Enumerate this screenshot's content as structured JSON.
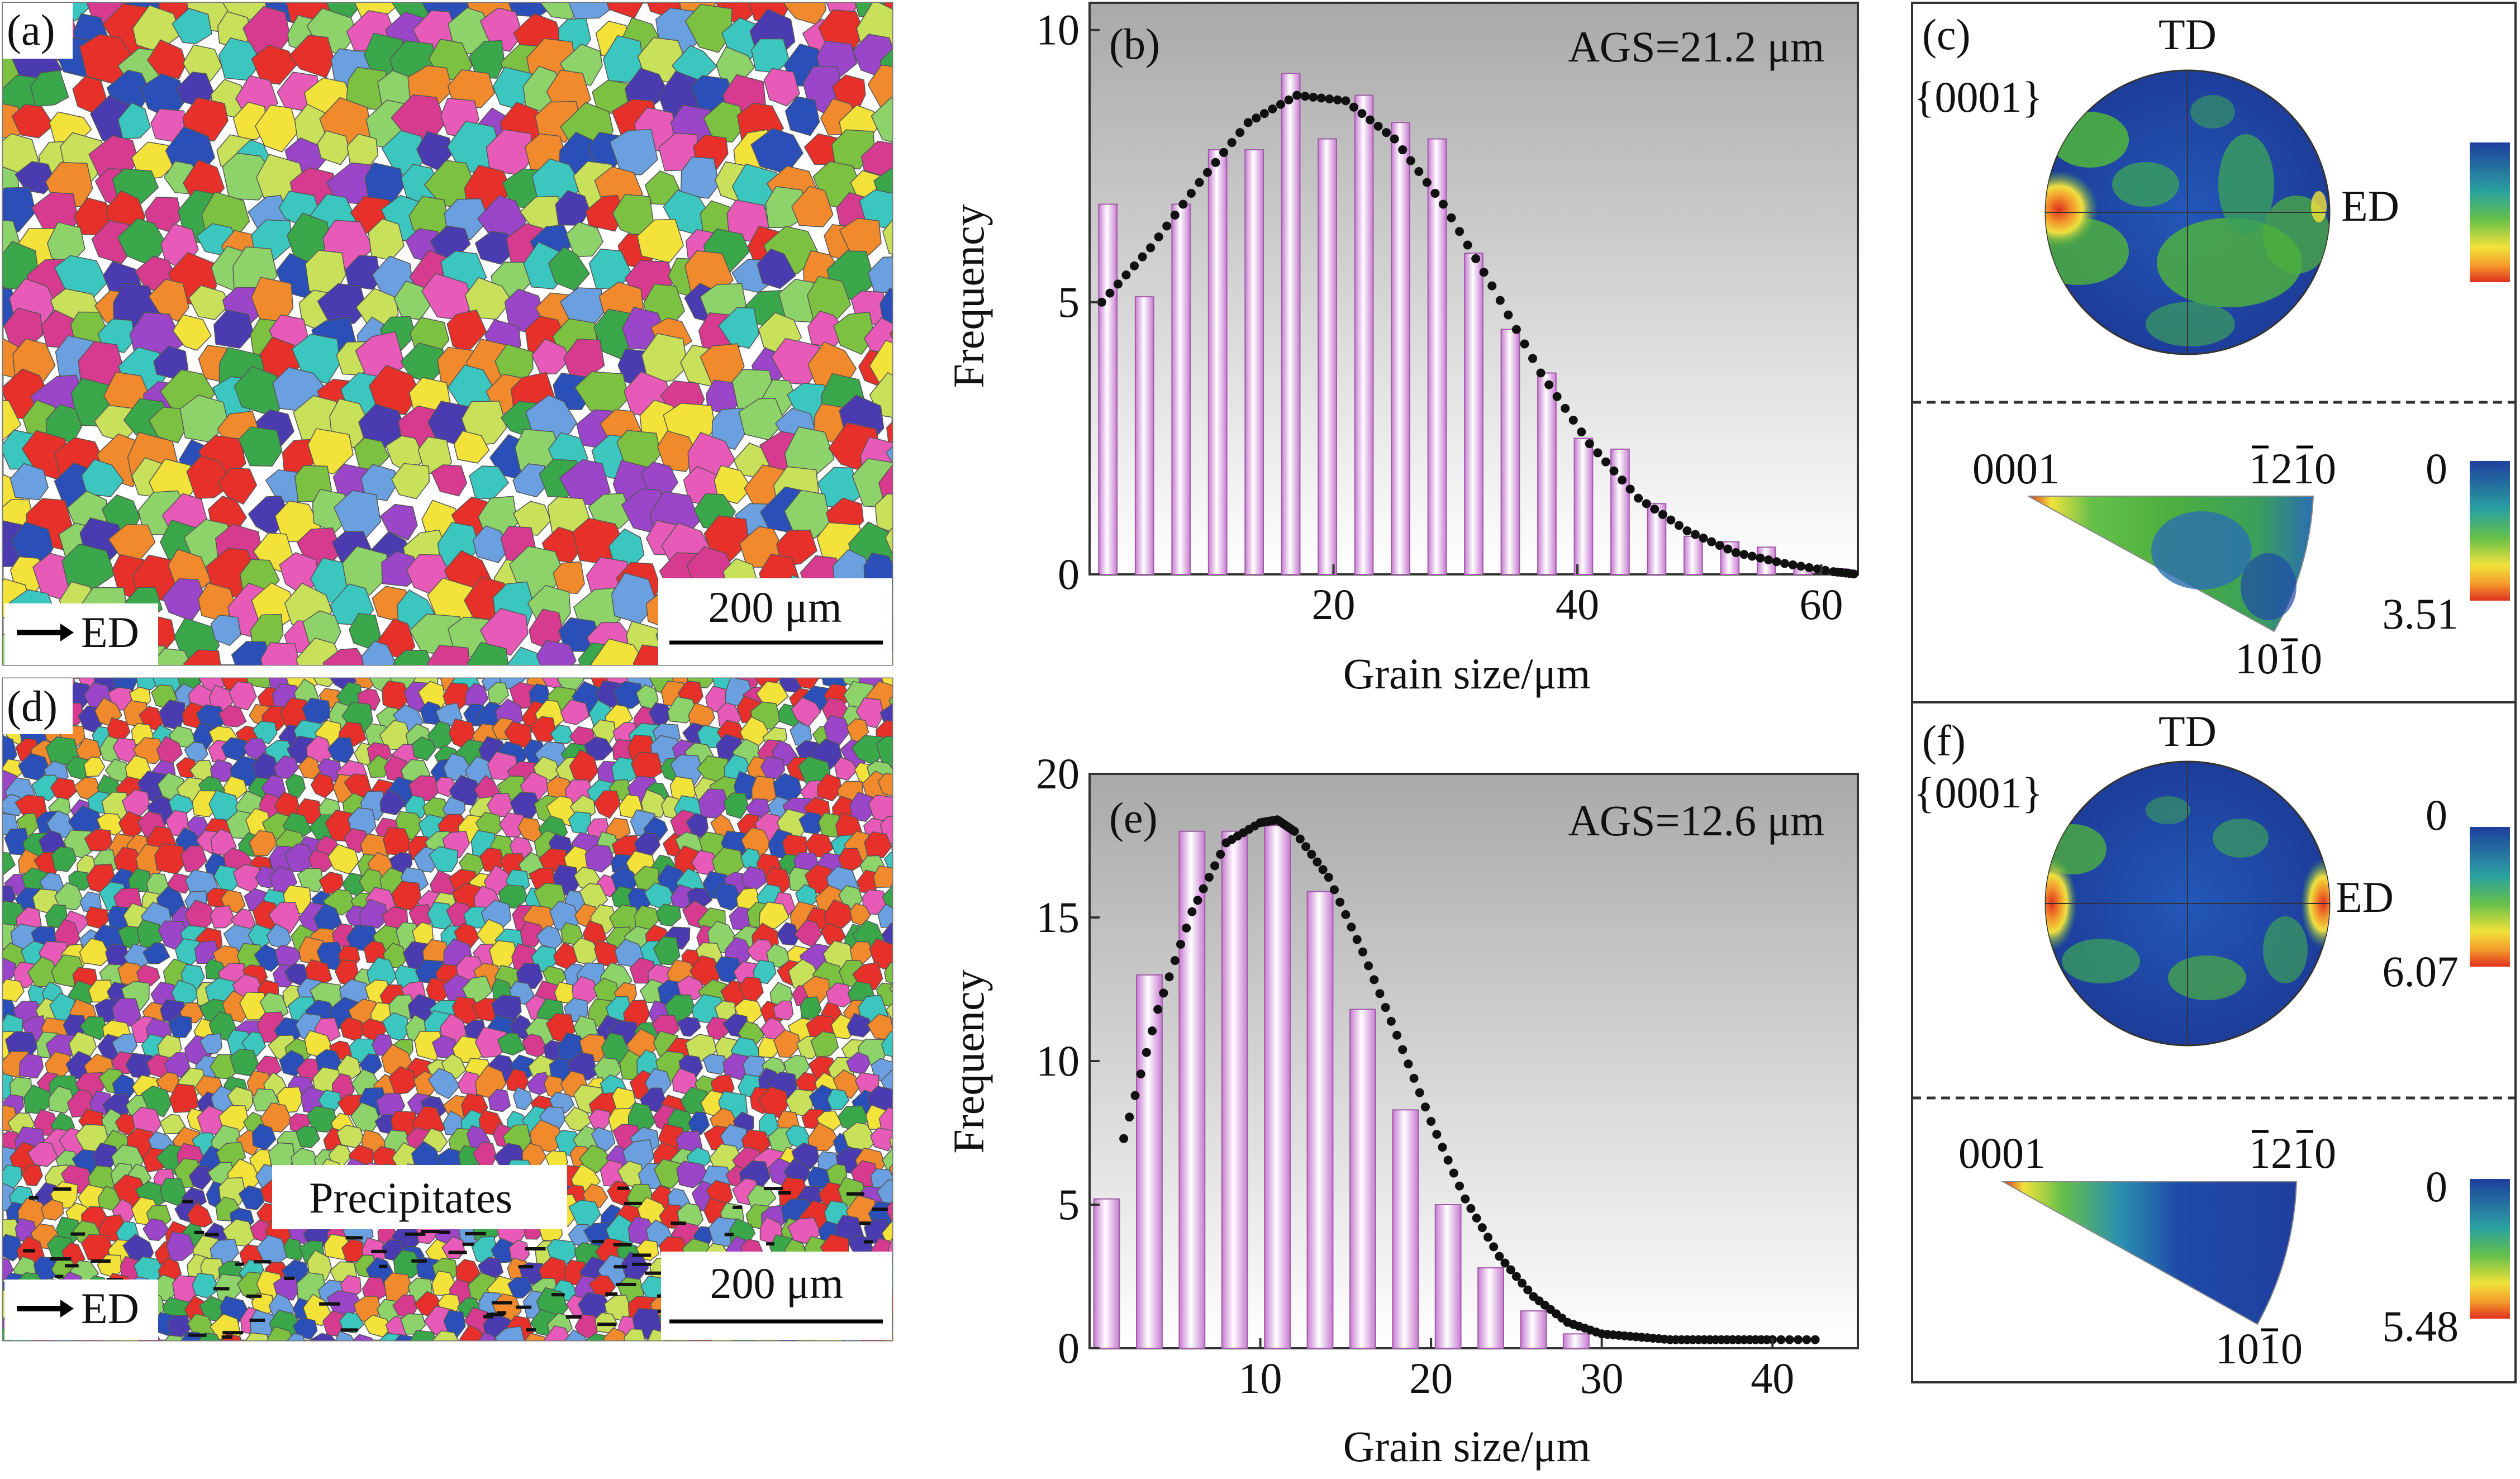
{
  "panels": {
    "a": {
      "label": "(a)",
      "ed_label": "ED",
      "scale_label": "200 μm"
    },
    "d": {
      "label": "(d)",
      "ed_label": "ED",
      "scale_label": "200 μm",
      "annotation": "Precipitates"
    },
    "b": {
      "label": "(b)",
      "ags": "AGS=21.2 μm",
      "chart_data": {
        "type": "bar",
        "xlabel": "Grain size/μm",
        "ylabel": "Frequency",
        "xlim": [
          0,
          63
        ],
        "ylim": [
          0,
          10.5
        ],
        "xticks": [
          20,
          40,
          60
        ],
        "yticks": [
          0,
          5,
          10
        ],
        "bar_width": 1.5,
        "x": [
          1.5,
          4.5,
          7.5,
          10.5,
          13.5,
          16.5,
          19.5,
          22.5,
          25.5,
          28.5,
          31.5,
          34.5,
          37.5,
          40.5,
          43.5,
          46.5,
          49.5,
          52.5,
          55.5,
          58.5,
          61.5
        ],
        "values": [
          6.8,
          5.1,
          6.8,
          7.8,
          7.8,
          9.2,
          8.0,
          8.8,
          8.3,
          8.0,
          5.9,
          4.5,
          3.7,
          2.5,
          2.3,
          1.3,
          0.7,
          0.6,
          0.5,
          0.15,
          0.1
        ],
        "fit": {
          "x": [
            1,
            5,
            9,
            13,
            17,
            21,
            25,
            29,
            33,
            37,
            41,
            45,
            49,
            53,
            57,
            61,
            63
          ],
          "y": [
            5.0,
            6.0,
            7.2,
            8.3,
            8.8,
            8.7,
            8.0,
            6.8,
            5.3,
            3.7,
            2.4,
            1.4,
            0.8,
            0.4,
            0.2,
            0.05,
            0.0
          ]
        }
      }
    },
    "e": {
      "label": "(e)",
      "ags": "AGS=12.6 μm",
      "chart_data": {
        "type": "bar",
        "xlabel": "Grain size/μm",
        "ylabel": "Frequency",
        "xlim": [
          0,
          45
        ],
        "ylim": [
          0,
          20
        ],
        "xticks": [
          10,
          20,
          30,
          40
        ],
        "yticks": [
          0,
          5,
          10,
          15,
          20
        ],
        "bar_width": 1.5,
        "x": [
          1.0,
          3.5,
          6.0,
          8.5,
          11.0,
          13.5,
          16.0,
          18.5,
          21.0,
          23.5,
          26.0,
          28.5
        ],
        "values": [
          5.2,
          13.0,
          18.0,
          18.0,
          18.2,
          15.9,
          11.8,
          8.3,
          5.0,
          2.8,
          1.3,
          0.5
        ],
        "fit": {
          "x": [
            2,
            4,
            6,
            8,
            10,
            11,
            12,
            14,
            16,
            18,
            20,
            22,
            24,
            26,
            28,
            30,
            32,
            34,
            36,
            38,
            40,
            43
          ],
          "y": [
            7.3,
            11.8,
            15.2,
            17.6,
            18.3,
            18.4,
            18.0,
            16.4,
            13.8,
            10.9,
            7.9,
            5.2,
            3.2,
            1.8,
            0.9,
            0.5,
            0.4,
            0.3,
            0.3,
            0.3,
            0.3,
            0.3
          ]
        }
      }
    },
    "c": {
      "label": "(c)",
      "pole_label": "{0001}",
      "td": "TD",
      "ed": "ED",
      "ipf_left": "0001",
      "ipf_right_1": "1",
      "ipf_right_2": "2",
      "ipf_right_3": "10",
      "ipf_bottom": "1010",
      "ipf_max": "0",
      "ipf_min": "3.51"
    },
    "f": {
      "label": "(f)",
      "pole_label": "{0001}",
      "td": "TD",
      "ed": "ED",
      "pf_max": "0",
      "pf_min": "6.07",
      "ipf_left": "0001",
      "ipf_max": "0",
      "ipf_min": "5.48"
    }
  },
  "colors": {
    "bar_fill": "#d596dc",
    "bar_highlight": "#ffffff",
    "fit": "#111111",
    "pf_background": "#1f3f9e",
    "pf_green": "#4caf3f",
    "pf_red": "#e03020"
  }
}
